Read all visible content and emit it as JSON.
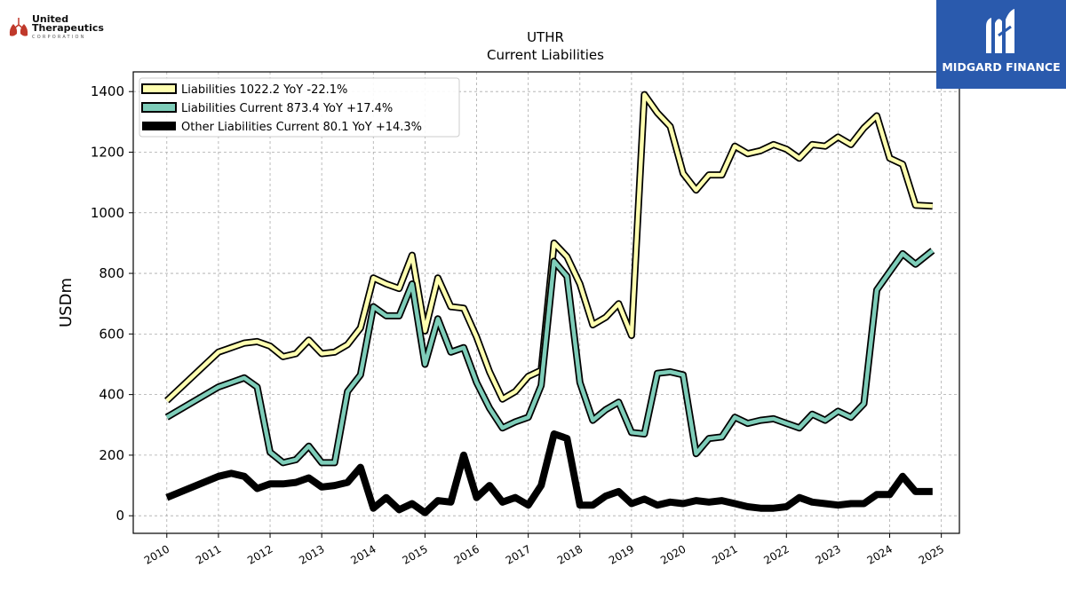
{
  "chart_data": {
    "type": "line",
    "title": "UTHR",
    "subtitle": "Current  Liabilities",
    "ylabel": "USDm",
    "xlabel": "",
    "xlim": [
      2009.35,
      2025.35
    ],
    "ylim": [
      -58,
      1465
    ],
    "x_ticks": [
      2010,
      2011,
      2012,
      2013,
      2014,
      2015,
      2016,
      2017,
      2018,
      2019,
      2020,
      2021,
      2022,
      2023,
      2024,
      2025
    ],
    "x_tick_labels": [
      "2010",
      "2011",
      "2012",
      "2013",
      "2014",
      "2015",
      "2016",
      "2017",
      "2018",
      "2019",
      "2020",
      "2021",
      "2022",
      "2023",
      "2024",
      "2025"
    ],
    "y_ticks": [
      0,
      200,
      400,
      600,
      800,
      1000,
      1200,
      1400
    ],
    "y_tick_labels": [
      "0",
      "200",
      "400",
      "600",
      "800",
      "1000",
      "1200",
      "1400"
    ],
    "grid": true,
    "legend_position": "top-left",
    "series": [
      {
        "name": "Liabilities  1022.2 YoY -22.1%",
        "color": "#ffffb0",
        "outline": "#000000",
        "points": [
          [
            2010.0,
            380
          ],
          [
            2011.0,
            540
          ],
          [
            2011.25,
            555
          ],
          [
            2011.5,
            570
          ],
          [
            2011.75,
            575
          ],
          [
            2012.0,
            560
          ],
          [
            2012.25,
            525
          ],
          [
            2012.5,
            535
          ],
          [
            2012.75,
            580
          ],
          [
            2013.0,
            535
          ],
          [
            2013.25,
            540
          ],
          [
            2013.5,
            565
          ],
          [
            2013.75,
            620
          ],
          [
            2014.0,
            785
          ],
          [
            2014.25,
            765
          ],
          [
            2014.5,
            750
          ],
          [
            2014.75,
            860
          ],
          [
            2015.0,
            610
          ],
          [
            2015.25,
            785
          ],
          [
            2015.5,
            690
          ],
          [
            2015.75,
            685
          ],
          [
            2016.0,
            590
          ],
          [
            2016.25,
            475
          ],
          [
            2016.5,
            385
          ],
          [
            2016.75,
            410
          ],
          [
            2017.0,
            460
          ],
          [
            2017.25,
            480
          ],
          [
            2017.5,
            900
          ],
          [
            2017.75,
            855
          ],
          [
            2018.0,
            765
          ],
          [
            2018.25,
            630
          ],
          [
            2018.5,
            655
          ],
          [
            2018.75,
            700
          ],
          [
            2019.0,
            595
          ],
          [
            2019.25,
            1390
          ],
          [
            2019.5,
            1330
          ],
          [
            2019.75,
            1285
          ],
          [
            2020.0,
            1130
          ],
          [
            2020.25,
            1075
          ],
          [
            2020.5,
            1125
          ],
          [
            2020.75,
            1125
          ],
          [
            2021.0,
            1220
          ],
          [
            2021.25,
            1195
          ],
          [
            2021.5,
            1205
          ],
          [
            2021.75,
            1225
          ],
          [
            2022.0,
            1210
          ],
          [
            2022.25,
            1180
          ],
          [
            2022.5,
            1225
          ],
          [
            2022.75,
            1220
          ],
          [
            2023.0,
            1250
          ],
          [
            2023.25,
            1225
          ],
          [
            2023.5,
            1280
          ],
          [
            2023.75,
            1320
          ],
          [
            2024.0,
            1180
          ],
          [
            2024.25,
            1160
          ],
          [
            2024.5,
            1025
          ],
          [
            2024.83,
            1022
          ]
        ]
      },
      {
        "name": "Liabilities Current  873.4 YoY +17.4%",
        "color": "#7ecdb9",
        "outline": "#000000",
        "points": [
          [
            2010.0,
            325
          ],
          [
            2011.0,
            425
          ],
          [
            2011.25,
            440
          ],
          [
            2011.5,
            455
          ],
          [
            2011.75,
            425
          ],
          [
            2012.0,
            210
          ],
          [
            2012.25,
            175
          ],
          [
            2012.5,
            185
          ],
          [
            2012.75,
            230
          ],
          [
            2013.0,
            175
          ],
          [
            2013.25,
            175
          ],
          [
            2013.5,
            410
          ],
          [
            2013.75,
            465
          ],
          [
            2014.0,
            690
          ],
          [
            2014.25,
            660
          ],
          [
            2014.5,
            660
          ],
          [
            2014.75,
            765
          ],
          [
            2015.0,
            500
          ],
          [
            2015.25,
            650
          ],
          [
            2015.5,
            540
          ],
          [
            2015.75,
            555
          ],
          [
            2016.0,
            440
          ],
          [
            2016.25,
            355
          ],
          [
            2016.5,
            290
          ],
          [
            2016.75,
            310
          ],
          [
            2017.0,
            325
          ],
          [
            2017.25,
            430
          ],
          [
            2017.5,
            840
          ],
          [
            2017.75,
            790
          ],
          [
            2018.0,
            440
          ],
          [
            2018.25,
            315
          ],
          [
            2018.5,
            350
          ],
          [
            2018.75,
            375
          ],
          [
            2019.0,
            275
          ],
          [
            2019.25,
            270
          ],
          [
            2019.5,
            470
          ],
          [
            2019.75,
            475
          ],
          [
            2020.0,
            465
          ],
          [
            2020.25,
            205
          ],
          [
            2020.5,
            255
          ],
          [
            2020.75,
            260
          ],
          [
            2021.0,
            325
          ],
          [
            2021.25,
            305
          ],
          [
            2021.5,
            315
          ],
          [
            2021.75,
            320
          ],
          [
            2022.0,
            305
          ],
          [
            2022.25,
            290
          ],
          [
            2022.5,
            335
          ],
          [
            2022.75,
            315
          ],
          [
            2023.0,
            345
          ],
          [
            2023.25,
            325
          ],
          [
            2023.5,
            370
          ],
          [
            2023.75,
            745
          ],
          [
            2024.0,
            805
          ],
          [
            2024.25,
            865
          ],
          [
            2024.5,
            830
          ],
          [
            2024.83,
            875
          ]
        ]
      },
      {
        "name": "Other Liabilities Current  80.1 YoY +14.3%",
        "color": "#000000",
        "outline": "#000000",
        "points": [
          [
            2010.0,
            60
          ],
          [
            2011.0,
            130
          ],
          [
            2011.25,
            140
          ],
          [
            2011.5,
            130
          ],
          [
            2011.75,
            90
          ],
          [
            2012.0,
            105
          ],
          [
            2012.25,
            105
          ],
          [
            2012.5,
            110
          ],
          [
            2012.75,
            125
          ],
          [
            2013.0,
            95
          ],
          [
            2013.25,
            100
          ],
          [
            2013.5,
            110
          ],
          [
            2013.75,
            160
          ],
          [
            2014.0,
            25
          ],
          [
            2014.25,
            60
          ],
          [
            2014.5,
            20
          ],
          [
            2014.75,
            40
          ],
          [
            2015.0,
            10
          ],
          [
            2015.25,
            50
          ],
          [
            2015.5,
            45
          ],
          [
            2015.75,
            200
          ],
          [
            2016.0,
            60
          ],
          [
            2016.25,
            100
          ],
          [
            2016.5,
            45
          ],
          [
            2016.75,
            60
          ],
          [
            2017.0,
            35
          ],
          [
            2017.25,
            100
          ],
          [
            2017.5,
            270
          ],
          [
            2017.75,
            255
          ],
          [
            2018.0,
            35
          ],
          [
            2018.25,
            35
          ],
          [
            2018.5,
            65
          ],
          [
            2018.75,
            80
          ],
          [
            2019.0,
            40
          ],
          [
            2019.25,
            55
          ],
          [
            2019.5,
            35
          ],
          [
            2019.75,
            45
          ],
          [
            2020.0,
            40
          ],
          [
            2020.25,
            50
          ],
          [
            2020.5,
            45
          ],
          [
            2020.75,
            50
          ],
          [
            2021.0,
            40
          ],
          [
            2021.25,
            30
          ],
          [
            2021.5,
            25
          ],
          [
            2021.75,
            25
          ],
          [
            2022.0,
            30
          ],
          [
            2022.25,
            60
          ],
          [
            2022.5,
            45
          ],
          [
            2022.75,
            40
          ],
          [
            2023.0,
            35
          ],
          [
            2023.25,
            40
          ],
          [
            2023.5,
            40
          ],
          [
            2023.75,
            70
          ],
          [
            2024.0,
            70
          ],
          [
            2024.25,
            130
          ],
          [
            2024.5,
            80
          ],
          [
            2024.83,
            80
          ]
        ]
      }
    ]
  },
  "logos": {
    "left": {
      "line1": "United",
      "line2": "Therapeutics",
      "line3": "CORPORATION"
    },
    "right": {
      "brand": "MIDGARD FINANCE",
      "bg_color": "#2a5aad"
    }
  }
}
